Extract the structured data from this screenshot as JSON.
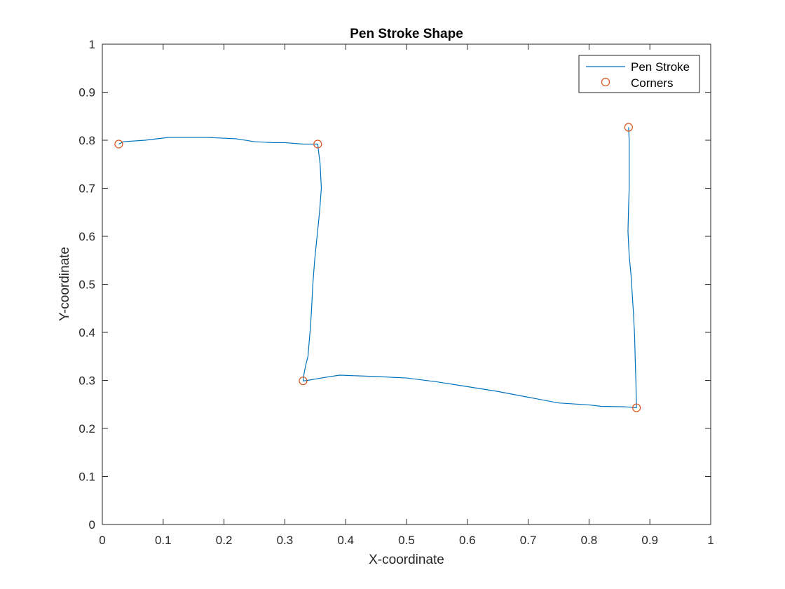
{
  "chart_data": {
    "type": "line",
    "title": "Pen Stroke Shape",
    "xlabel": "X-coordinate",
    "ylabel": "Y-coordinate",
    "xlim": [
      0,
      1
    ],
    "ylim": [
      0,
      1
    ],
    "xticks": [
      0,
      0.1,
      0.2,
      0.3,
      0.4,
      0.5,
      0.6,
      0.7,
      0.8,
      0.9,
      1
    ],
    "yticks": [
      0,
      0.1,
      0.2,
      0.3,
      0.4,
      0.5,
      0.6,
      0.7,
      0.8,
      0.9,
      1
    ],
    "xtick_labels": [
      "0",
      "0.1",
      "0.2",
      "0.3",
      "0.4",
      "0.5",
      "0.6",
      "0.7",
      "0.8",
      "0.9",
      "1"
    ],
    "ytick_labels": [
      "0",
      "0.1",
      "0.2",
      "0.3",
      "0.4",
      "0.5",
      "0.6",
      "0.7",
      "0.8",
      "0.9",
      "1"
    ],
    "grid": false,
    "legend_position": "top-right",
    "series": [
      {
        "name": "Pen Stroke",
        "kind": "line",
        "color": "#0072BD",
        "x": [
          0.027,
          0.035,
          0.07,
          0.11,
          0.17,
          0.22,
          0.25,
          0.28,
          0.3,
          0.33,
          0.354,
          0.358,
          0.36,
          0.357,
          0.353,
          0.349,
          0.346,
          0.344,
          0.342,
          0.338,
          0.334,
          0.331,
          0.33,
          0.337,
          0.36,
          0.39,
          0.45,
          0.5,
          0.55,
          0.6,
          0.65,
          0.7,
          0.75,
          0.8,
          0.82,
          0.86,
          0.878,
          0.877,
          0.876,
          0.875,
          0.873,
          0.871,
          0.869,
          0.866,
          0.864,
          0.865,
          0.866,
          0.866,
          0.866,
          0.865
        ],
        "y": [
          0.792,
          0.797,
          0.8,
          0.806,
          0.806,
          0.803,
          0.797,
          0.795,
          0.795,
          0.792,
          0.792,
          0.75,
          0.7,
          0.65,
          0.6,
          0.55,
          0.5,
          0.45,
          0.41,
          0.35,
          0.33,
          0.31,
          0.299,
          0.3,
          0.305,
          0.311,
          0.308,
          0.305,
          0.297,
          0.287,
          0.277,
          0.265,
          0.253,
          0.249,
          0.246,
          0.245,
          0.243,
          0.3,
          0.34,
          0.39,
          0.44,
          0.48,
          0.52,
          0.56,
          0.61,
          0.66,
          0.7,
          0.76,
          0.8,
          0.827
        ]
      },
      {
        "name": "Corners",
        "kind": "markers",
        "marker": "circle",
        "color": "#D95319",
        "x": [
          0.027,
          0.354,
          0.33,
          0.878,
          0.865
        ],
        "y": [
          0.792,
          0.792,
          0.299,
          0.243,
          0.827
        ]
      }
    ]
  }
}
